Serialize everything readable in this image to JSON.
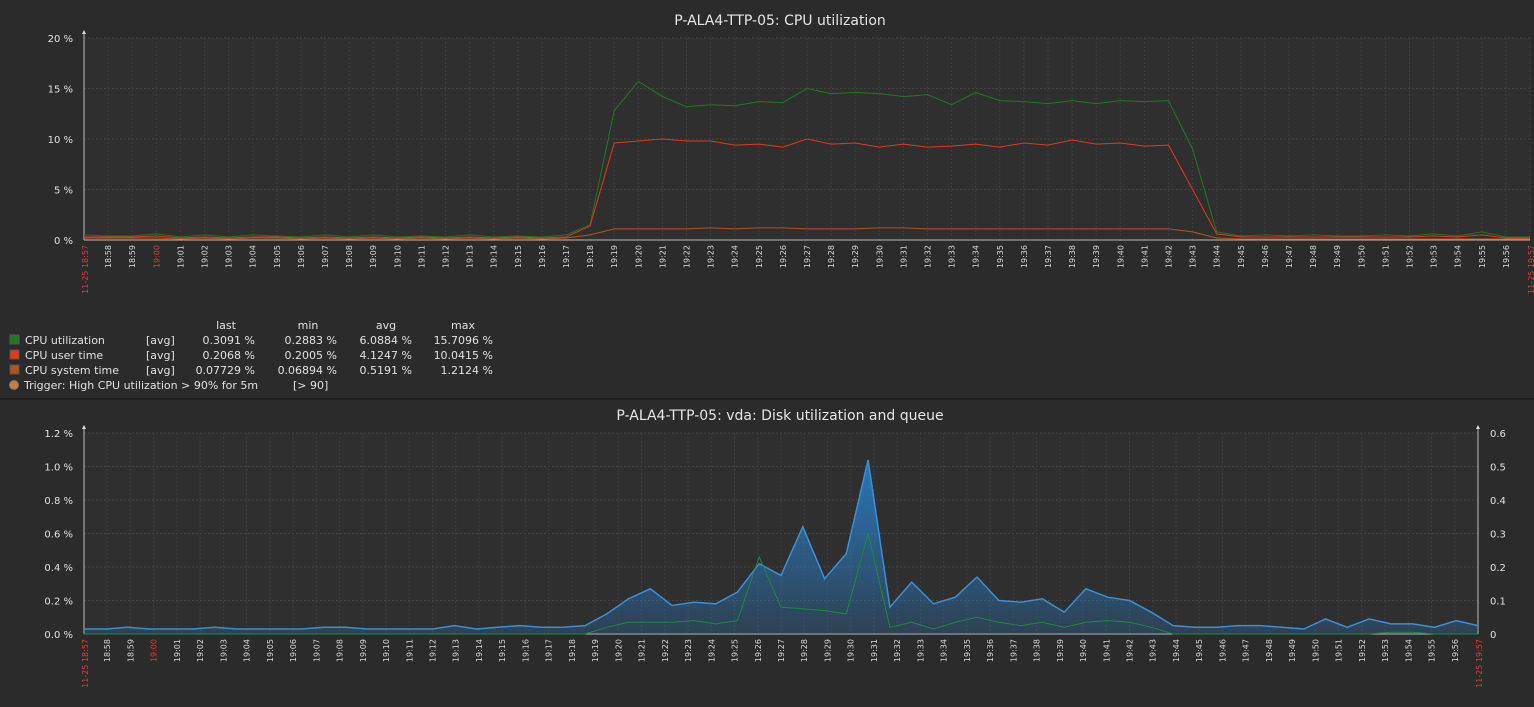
{
  "chart_data": [
    {
      "type": "line",
      "title": "P-ALA4-TTP-05: CPU utilization",
      "y_ticks": [
        "0 %",
        "5 %",
        "10 %",
        "15 %",
        "20 %"
      ],
      "ylim": [
        0,
        20
      ],
      "grid": true,
      "x_start_label": "11-25 18:57",
      "x_end_label": "11-25 19:57",
      "x_red_label": "19:00",
      "x_labels": [
        "18:58",
        "18:59",
        "19:00",
        "19:01",
        "19:02",
        "19:03",
        "19:04",
        "19:05",
        "19:06",
        "19:07",
        "19:08",
        "19:09",
        "19:10",
        "19:11",
        "19:12",
        "19:13",
        "19:14",
        "19:15",
        "19:16",
        "19:17",
        "19:18",
        "19:19",
        "19:20",
        "19:21",
        "19:22",
        "19:23",
        "19:24",
        "19:25",
        "19:26",
        "19:27",
        "19:28",
        "19:29",
        "19:30",
        "19:31",
        "19:32",
        "19:33",
        "19:34",
        "19:35",
        "19:36",
        "19:37",
        "19:38",
        "19:39",
        "19:40",
        "19:41",
        "19:42",
        "19:43",
        "19:44",
        "19:45",
        "19:46",
        "19:47",
        "19:48",
        "19:49",
        "19:50",
        "19:51",
        "19:52",
        "19:53",
        "19:54",
        "19:55",
        "19:56"
      ],
      "series": [
        {
          "name": "CPU utilization",
          "color": "#1f7a1f",
          "values": [
            0.5,
            0.4,
            0.4,
            0.6,
            0.3,
            0.5,
            0.3,
            0.5,
            0.4,
            0.3,
            0.5,
            0.3,
            0.5,
            0.3,
            0.4,
            0.3,
            0.5,
            0.3,
            0.4,
            0.3,
            0.5,
            1.5,
            12.8,
            15.7,
            14.2,
            13.2,
            13.4,
            13.3,
            13.7,
            13.6,
            15.0,
            14.5,
            14.6,
            14.5,
            14.2,
            14.4,
            13.4,
            14.6,
            13.8,
            13.7,
            13.5,
            13.8,
            13.5,
            13.8,
            13.7,
            13.8,
            9.0,
            0.8,
            0.4,
            0.5,
            0.4,
            0.5,
            0.4,
            0.4,
            0.5,
            0.4,
            0.6,
            0.4,
            0.8,
            0.3,
            0.3
          ]
        },
        {
          "name": "CPU user time",
          "color": "#e8361b",
          "values": [
            0.3,
            0.3,
            0.3,
            0.4,
            0.2,
            0.3,
            0.2,
            0.3,
            0.3,
            0.2,
            0.3,
            0.2,
            0.3,
            0.2,
            0.3,
            0.2,
            0.3,
            0.2,
            0.3,
            0.2,
            0.3,
            1.4,
            9.6,
            9.8,
            10.0,
            9.8,
            9.8,
            9.4,
            9.5,
            9.2,
            10.0,
            9.5,
            9.6,
            9.2,
            9.5,
            9.2,
            9.3,
            9.5,
            9.2,
            9.6,
            9.4,
            9.9,
            9.5,
            9.6,
            9.3,
            9.4,
            5.0,
            0.6,
            0.3,
            0.3,
            0.3,
            0.3,
            0.3,
            0.3,
            0.3,
            0.3,
            0.4,
            0.3,
            0.5,
            0.2,
            0.2
          ]
        },
        {
          "name": "CPU system time",
          "color": "#b3541e",
          "values": [
            0.2,
            0.2,
            0.2,
            0.2,
            0.1,
            0.2,
            0.1,
            0.2,
            0.2,
            0.1,
            0.2,
            0.1,
            0.2,
            0.1,
            0.2,
            0.1,
            0.2,
            0.1,
            0.2,
            0.1,
            0.2,
            0.5,
            1.1,
            1.1,
            1.1,
            1.1,
            1.2,
            1.1,
            1.2,
            1.2,
            1.1,
            1.1,
            1.1,
            1.2,
            1.2,
            1.1,
            1.1,
            1.1,
            1.1,
            1.1,
            1.1,
            1.1,
            1.1,
            1.1,
            1.1,
            1.1,
            0.8,
            0.2,
            0.1,
            0.1,
            0.1,
            0.1,
            0.1,
            0.1,
            0.1,
            0.1,
            0.1,
            0.1,
            0.1,
            0.1,
            0.1
          ]
        }
      ],
      "legend": {
        "headers": [
          "last",
          "min",
          "avg",
          "max"
        ],
        "rows": [
          {
            "name": "CPU utilization",
            "func": "[avg]",
            "last": "0.3091 %",
            "min": "0.2883 %",
            "avg": "6.0884 %",
            "max": "15.7096 %",
            "color": "#1f7a1f"
          },
          {
            "name": "CPU user time",
            "func": "[avg]",
            "last": "0.2068 %",
            "min": "0.2005 %",
            "avg": "4.1247 %",
            "max": "10.0415 %",
            "color": "#e8361b"
          },
          {
            "name": "CPU system time",
            "func": "[avg]",
            "last": "0.07729 %",
            "min": "0.06894 %",
            "avg": "0.5191 %",
            "max": "1.2124 %",
            "color": "#b3541e"
          }
        ],
        "trigger": {
          "label": "Trigger: High CPU utilization > 90% for 5m",
          "value": "[> 90]",
          "color": "#c87d3a"
        }
      }
    },
    {
      "type": "area",
      "title": "P-ALA4-TTP-05: vda: Disk utilization and queue",
      "y_ticks": [
        "0.0 %",
        "0.2 %",
        "0.4 %",
        "0.6 %",
        "0.8 %",
        "1.0 %",
        "1.2 %"
      ],
      "ylim": [
        0,
        1.2
      ],
      "y2_ticks": [
        "0",
        "0.1",
        "0.2",
        "0.3",
        "0.4",
        "0.5",
        "0.6"
      ],
      "y2lim": [
        0,
        0.6
      ],
      "grid": true,
      "x_start_label": "11-25 18:57",
      "x_end_label": "11-25 19:57",
      "x_red_label": "19:00",
      "x_labels": [
        "18:58",
        "18:59",
        "19:00",
        "19:01",
        "19:02",
        "19:03",
        "19:04",
        "19:05",
        "19:06",
        "19:07",
        "19:08",
        "19:09",
        "19:10",
        "19:11",
        "19:12",
        "19:13",
        "19:14",
        "19:15",
        "19:16",
        "19:17",
        "19:18",
        "19:19",
        "19:20",
        "19:21",
        "19:22",
        "19:23",
        "19:24",
        "19:25",
        "19:26",
        "19:27",
        "19:28",
        "19:29",
        "19:30",
        "19:31",
        "19:32",
        "19:33",
        "19:34",
        "19:35",
        "19:36",
        "19:37",
        "19:38",
        "19:39",
        "19:40",
        "19:41",
        "19:42",
        "19:43",
        "19:44",
        "19:45",
        "19:46",
        "19:47",
        "19:48",
        "19:49",
        "19:50",
        "19:51",
        "19:52",
        "19:53",
        "19:54",
        "19:55",
        "19:56"
      ],
      "series": [
        {
          "color": "#2a7ac0",
          "axis": "left",
          "values": [
            0.03,
            0.03,
            0.04,
            0.03,
            0.03,
            0.03,
            0.04,
            0.03,
            0.03,
            0.03,
            0.03,
            0.04,
            0.04,
            0.03,
            0.03,
            0.03,
            0.03,
            0.05,
            0.03,
            0.04,
            0.05,
            0.04,
            0.04,
            0.05,
            0.12,
            0.21,
            0.27,
            0.17,
            0.19,
            0.18,
            0.25,
            0.42,
            0.35,
            0.64,
            0.33,
            0.48,
            1.04,
            0.16,
            0.31,
            0.18,
            0.22,
            0.34,
            0.2,
            0.19,
            0.21,
            0.13,
            0.27,
            0.22,
            0.2,
            0.13,
            0.05,
            0.04,
            0.04,
            0.05,
            0.05,
            0.04,
            0.03,
            0.09,
            0.04,
            0.09,
            0.06,
            0.06,
            0.04,
            0.08,
            0.05
          ]
        },
        {
          "color": "#1f8a3c",
          "axis": "right",
          "values": [
            0.0,
            0.0,
            0.0,
            0.0,
            0.0,
            0.0,
            0.0,
            0.0,
            0.0,
            0.0,
            0.0,
            0.0,
            0.0,
            0.0,
            0.0,
            0.0,
            0.0,
            0.0,
            0.0,
            0.0,
            0.0,
            0.0,
            0.0,
            0.0,
            0.02,
            0.035,
            0.035,
            0.035,
            0.04,
            0.03,
            0.04,
            0.23,
            0.08,
            0.075,
            0.07,
            0.06,
            0.3,
            0.02,
            0.035,
            0.015,
            0.035,
            0.05,
            0.035,
            0.025,
            0.035,
            0.02,
            0.035,
            0.04,
            0.035,
            0.02,
            0.0,
            0.0,
            0.0,
            0.0,
            0.0,
            0.0,
            0.0,
            0.0,
            0.0,
            0.0,
            0.005,
            0.005,
            0.0,
            0.0,
            0.0
          ]
        }
      ]
    }
  ]
}
